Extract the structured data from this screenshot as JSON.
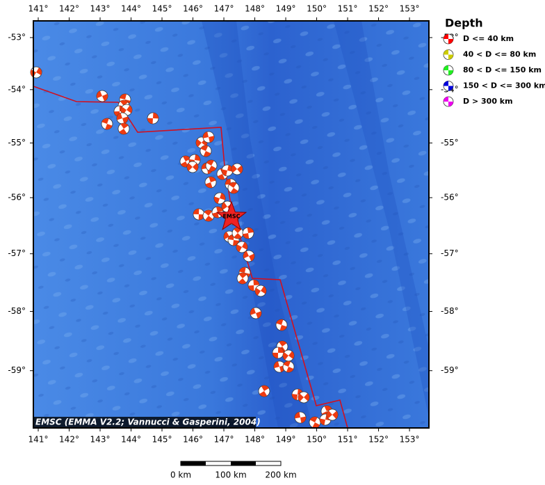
{
  "map": {
    "longitude_ticks": [
      {
        "value": 141,
        "label": "141°"
      },
      {
        "value": 142,
        "label": "142°"
      },
      {
        "value": 143,
        "label": "143°"
      },
      {
        "value": 144,
        "label": "144°"
      },
      {
        "value": 145,
        "label": "145°"
      },
      {
        "value": 146,
        "label": "146°"
      },
      {
        "value": 147,
        "label": "147°"
      },
      {
        "value": 148,
        "label": "148°"
      },
      {
        "value": 149,
        "label": "149°"
      },
      {
        "value": 150,
        "label": "150°"
      },
      {
        "value": 151,
        "label": "151°"
      },
      {
        "value": 152,
        "label": "152°"
      },
      {
        "value": 153,
        "label": "153°"
      }
    ],
    "latitude_ticks": [
      {
        "value": -53,
        "label": "-53°"
      },
      {
        "value": -54,
        "label": "-54°"
      },
      {
        "value": -55,
        "label": "-55°"
      },
      {
        "value": -56,
        "label": "-56°"
      },
      {
        "value": -57,
        "label": "-57°"
      },
      {
        "value": -58,
        "label": "-58°"
      },
      {
        "value": -59,
        "label": "-59°"
      }
    ],
    "legend": {
      "title": "Depth",
      "entries": [
        "D <= 40 km",
        "40 < D <= 80 km",
        "80 < D <= 150 km",
        "150 < D <= 300 km",
        "D > 300 km"
      ]
    },
    "epicenter_label": "EMSC",
    "credit": "EMSC (EMMA V2.2; Vannucci & Gasperini, 2004)",
    "scale_bar": [
      "0 km",
      "100 km",
      "200 km"
    ]
  }
}
